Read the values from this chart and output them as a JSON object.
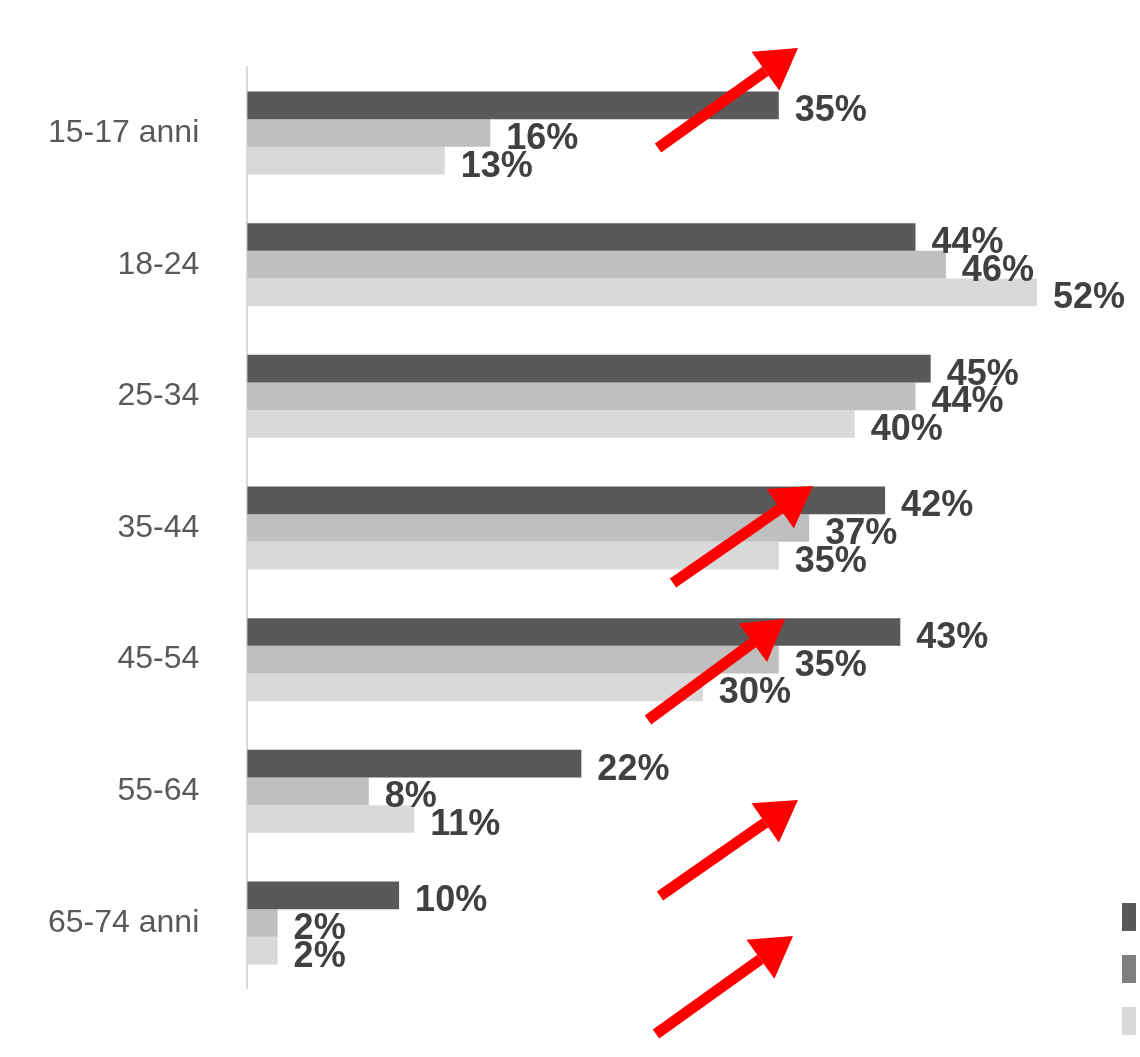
{
  "chart_data": {
    "type": "bar",
    "orientation": "horizontal",
    "categories": [
      "15-17 anni",
      "18-24",
      "25-34",
      "35-44",
      "45-54",
      "55-64",
      "65-74 anni"
    ],
    "series": [
      {
        "color": "#595959",
        "values": [
          35,
          44,
          45,
          42,
          43,
          22,
          10
        ],
        "value_labels": [
          "35%",
          "44%",
          "45%",
          "42%",
          "43%",
          "22%",
          "10%"
        ]
      },
      {
        "color": "#bfbfbf",
        "values": [
          16,
          46,
          44,
          37,
          35,
          8,
          2
        ],
        "value_labels": [
          "16%",
          "46%",
          "44%",
          "37%",
          "35%",
          "8%",
          "2%"
        ]
      },
      {
        "color": "#d9d9d9",
        "values": [
          13,
          52,
          40,
          35,
          30,
          11,
          2
        ],
        "value_labels": [
          "13%",
          "52%",
          "40%",
          "35%",
          "30%",
          "11%",
          "2%"
        ]
      }
    ]
  }
}
